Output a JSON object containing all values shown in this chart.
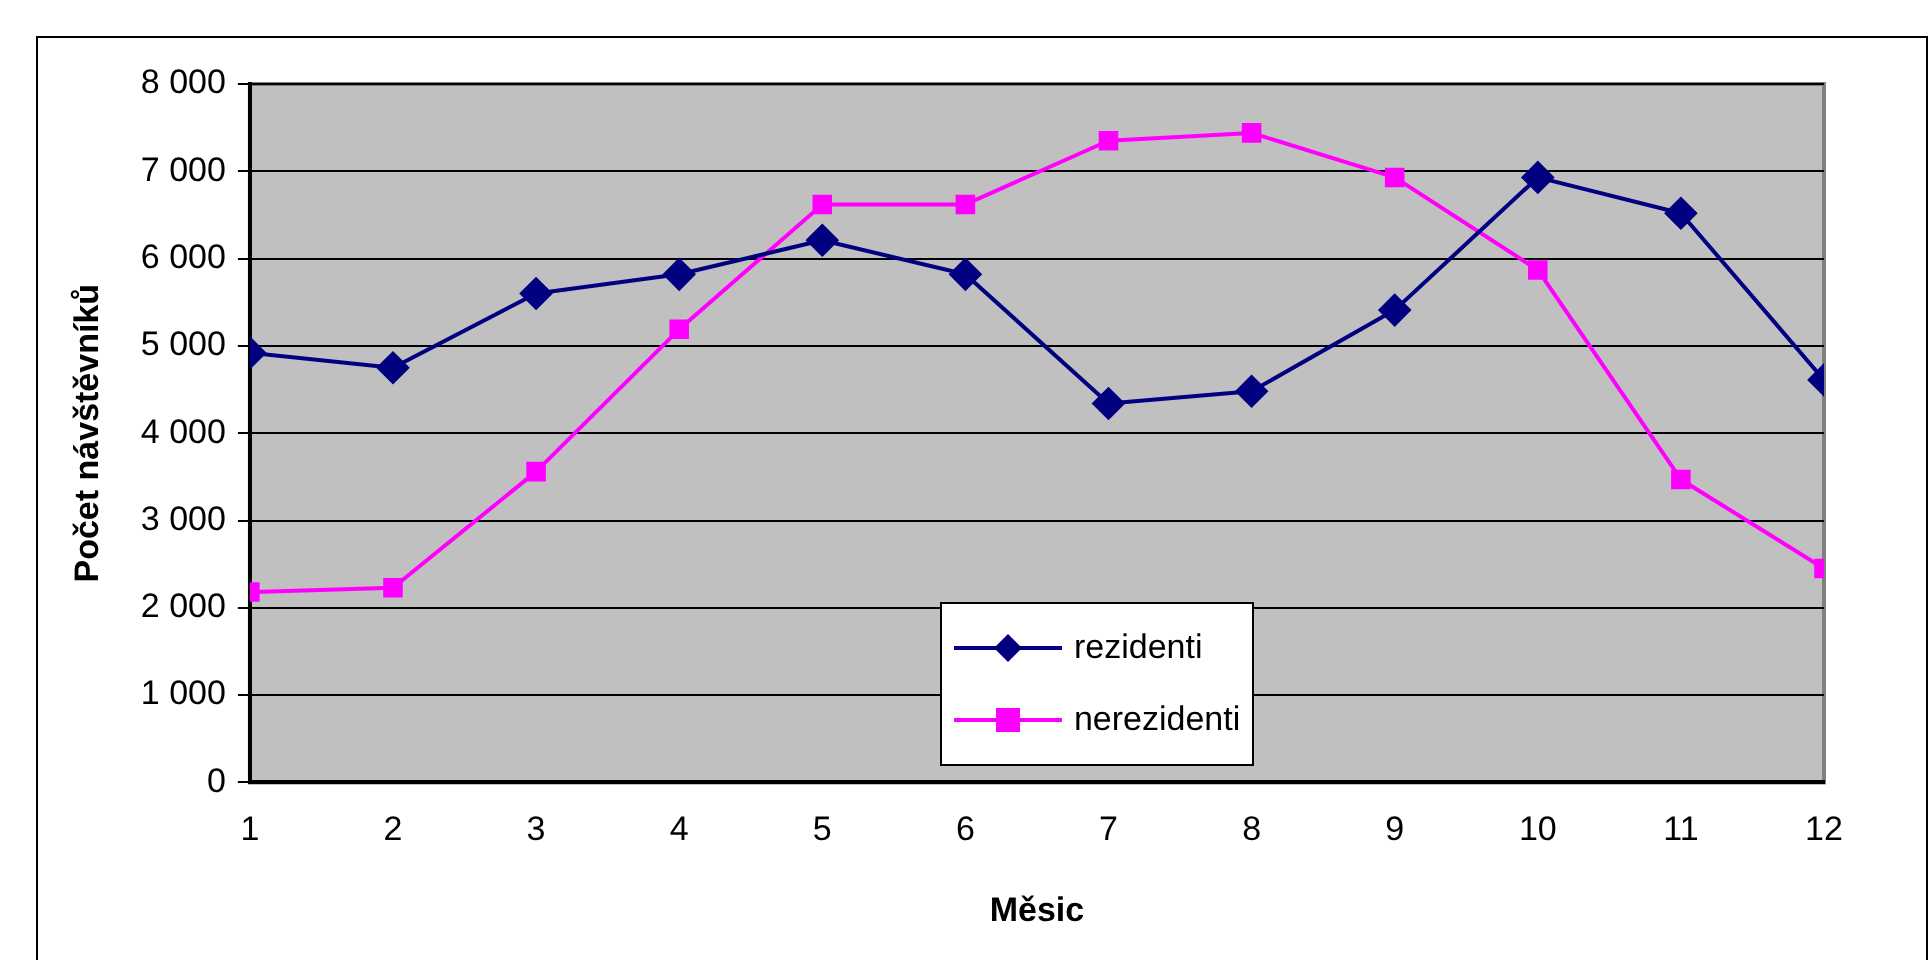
{
  "chart_data": {
    "type": "line",
    "xlabel": "Měsic",
    "ylabel": "Počet návštěvníků",
    "x": [
      1,
      2,
      3,
      4,
      5,
      6,
      7,
      8,
      9,
      10,
      11,
      12
    ],
    "series": [
      {
        "name": "rezidenti",
        "color": "#000080",
        "marker": "diamond",
        "values": [
          4920,
          4750,
          5600,
          5820,
          6210,
          5820,
          4340,
          4480,
          5410,
          6930,
          6520,
          4610
        ]
      },
      {
        "name": "nerezidenti",
        "color": "#ff00ff",
        "marker": "square",
        "values": [
          2180,
          2230,
          3560,
          5190,
          6620,
          6620,
          7350,
          7440,
          6930,
          5870,
          3470,
          2450
        ]
      }
    ],
    "xlim": [
      1,
      12
    ],
    "xticks": [
      1,
      2,
      3,
      4,
      5,
      6,
      7,
      8,
      9,
      10,
      11,
      12
    ],
    "ylim": [
      0,
      8000
    ],
    "yticks": [
      0,
      1000,
      2000,
      3000,
      4000,
      5000,
      6000,
      7000,
      8000
    ],
    "grid": "y",
    "legend": "bottom",
    "line_style": "solid"
  }
}
